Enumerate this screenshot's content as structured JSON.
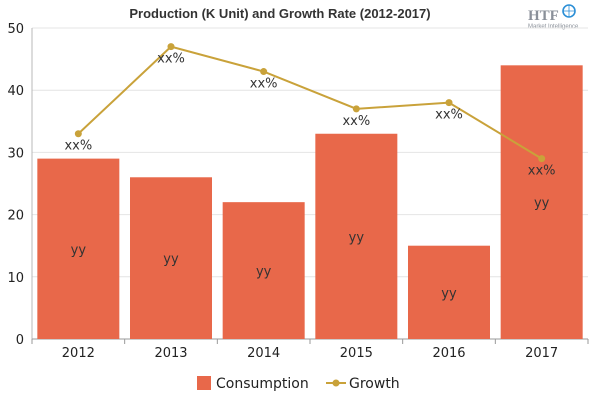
{
  "chart_data": {
    "type": "bar",
    "title": "Production (K Unit) and Growth Rate (2012-2017)",
    "categories": [
      "2012",
      "2013",
      "2014",
      "2015",
      "2016",
      "2017"
    ],
    "ylim": [
      0,
      50
    ],
    "yticks": [
      "0",
      "10",
      "20",
      "30",
      "40",
      "50"
    ],
    "grid": true,
    "legend_position": "bottom",
    "series": [
      {
        "name": "Consumption",
        "type": "bar",
        "color": "#e8684a",
        "values": [
          29,
          26,
          22,
          33,
          15,
          44
        ],
        "labels": [
          "yy",
          "yy",
          "yy",
          "yy",
          "yy",
          "yy"
        ]
      },
      {
        "name": "Growth",
        "type": "line",
        "color": "#c9a23a",
        "values": [
          33,
          47,
          43,
          37,
          38,
          29
        ],
        "labels": [
          "xx%",
          "xx%",
          "xx%",
          "xx%",
          "xx%",
          "xx%"
        ]
      }
    ]
  },
  "watermark": {
    "brand": "HTF",
    "tagline": "Market Intelligence"
  }
}
